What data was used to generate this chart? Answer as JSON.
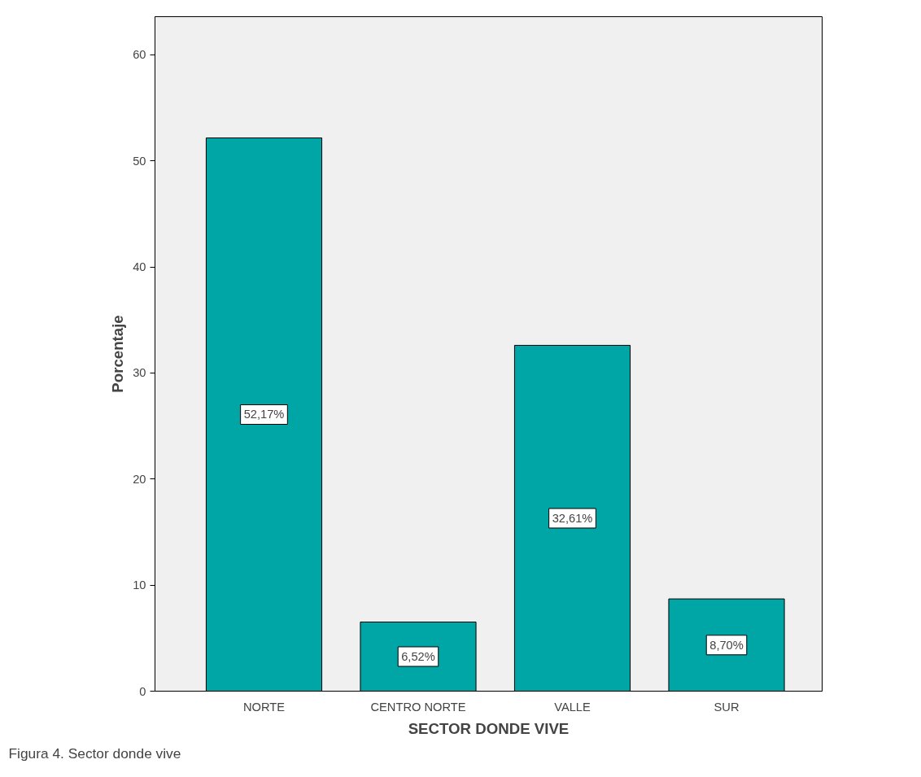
{
  "chart_data": {
    "type": "bar",
    "xlabel": "SECTOR DONDE VIVE",
    "ylabel": "Porcentaje",
    "categories": [
      "NORTE",
      "CENTRO NORTE",
      "VALLE",
      "SUR"
    ],
    "values": [
      52.17,
      6.52,
      32.61,
      8.7
    ],
    "value_labels": [
      "52,17%",
      "6,52%",
      "32,61%",
      "8,70%"
    ],
    "color": "#00a5a5",
    "ylim": [
      0,
      63.6
    ],
    "yticks": [
      0,
      10,
      20,
      30,
      40,
      50,
      60
    ],
    "grid": false,
    "annotations": [
      "Figura 4.  Sector donde vive"
    ]
  }
}
